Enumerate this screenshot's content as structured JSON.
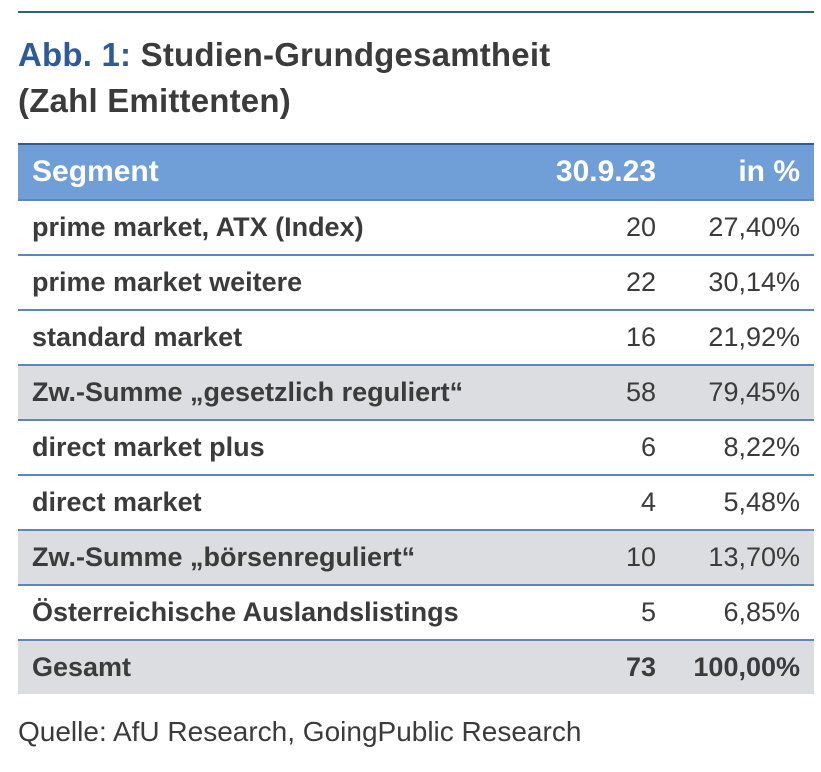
{
  "figure": {
    "prefix": "Abb. 1:",
    "title_line1": "Studien-Grundgesamtheit",
    "title_line2": "(Zahl Emittenten)"
  },
  "table": {
    "headers": [
      "Segment",
      "30.9.23",
      "in %"
    ],
    "rows": [
      {
        "segment": "prime market, ATX (Index)",
        "count": "20",
        "pct": "27,40%",
        "style": "normal"
      },
      {
        "segment": "prime market weitere",
        "count": "22",
        "pct": "30,14%",
        "style": "normal"
      },
      {
        "segment": "standard market",
        "count": "16",
        "pct": "21,92%",
        "style": "normal"
      },
      {
        "segment": "Zw.-Summe „gesetzlich reguliert“",
        "count": "58",
        "pct": "79,45%",
        "style": "subtotal"
      },
      {
        "segment": "direct market plus",
        "count": "6",
        "pct": "8,22%",
        "style": "normal"
      },
      {
        "segment": "direct market",
        "count": "4",
        "pct": "5,48%",
        "style": "normal"
      },
      {
        "segment": "Zw.-Summe „börsenreguliert“",
        "count": "10",
        "pct": "13,70%",
        "style": "subtotal"
      },
      {
        "segment": "Österreichische Auslandslistings",
        "count": "5",
        "pct": "6,85%",
        "style": "normal"
      },
      {
        "segment": "Gesamt",
        "count": "73",
        "pct": "100,00%",
        "style": "total"
      }
    ]
  },
  "source": "Quelle: AfU Research, GoingPublic Research",
  "colors": {
    "accent": "#2f5a9a",
    "header_bg": "#6f9fd6",
    "subtotal_bg": "#dcdde0",
    "text": "#3b3b3b"
  }
}
